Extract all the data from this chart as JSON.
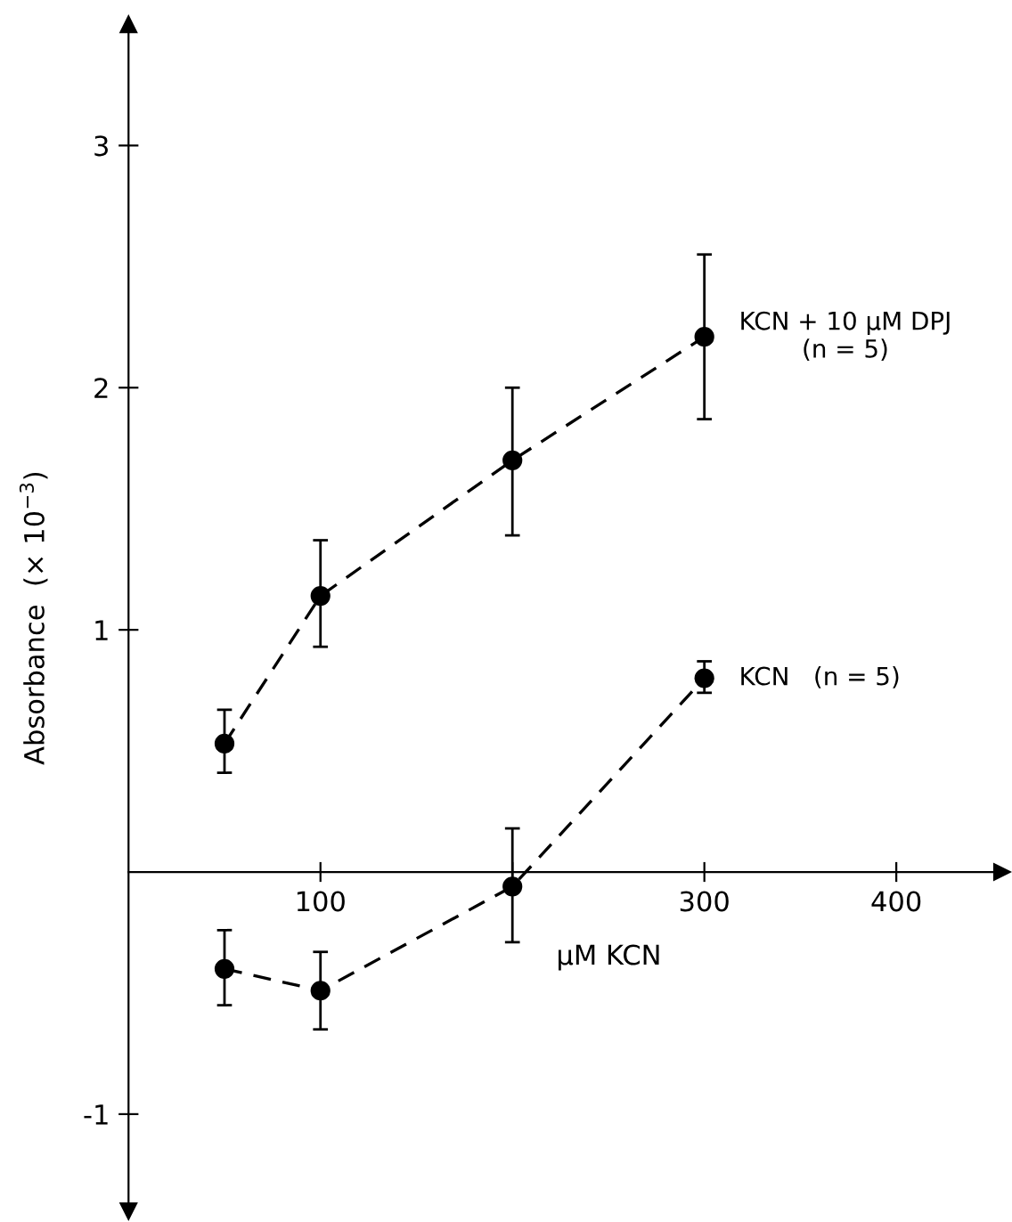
{
  "chart_data": {
    "type": "line",
    "xlabel": "µM KCN",
    "ylabel": "Absorbance  (× 10$^{−3}$)",
    "x": [
      50,
      100,
      200,
      300
    ],
    "series": [
      {
        "name": "KCN + 10 µM DPJ\n(n = 5)",
        "color": "#000000",
        "values": [
          0.53,
          1.14,
          1.7,
          2.21
        ],
        "errors": [
          [
            0.41,
            0.67
          ],
          [
            0.93,
            1.37
          ],
          [
            1.39,
            2.0
          ],
          [
            1.87,
            2.55
          ]
        ]
      },
      {
        "name": "KCN   (n = 5)",
        "color": "#000000",
        "values": [
          -0.4,
          -0.49,
          -0.06,
          0.8
        ],
        "errors": [
          [
            -0.55,
            -0.24
          ],
          [
            -0.65,
            -0.33
          ],
          [
            -0.29,
            0.18
          ],
          [
            0.74,
            0.87
          ]
        ]
      }
    ],
    "xlim": [
      0,
      455
    ],
    "ylim": [
      -1.4,
      3.5
    ],
    "xticks": [
      100,
      {
        "value": 200,
        "label": null
      },
      300,
      400
    ],
    "yticks": [
      -1,
      1,
      2,
      3
    ],
    "marker": "circle",
    "line_style": "dashed",
    "grid": false
  }
}
